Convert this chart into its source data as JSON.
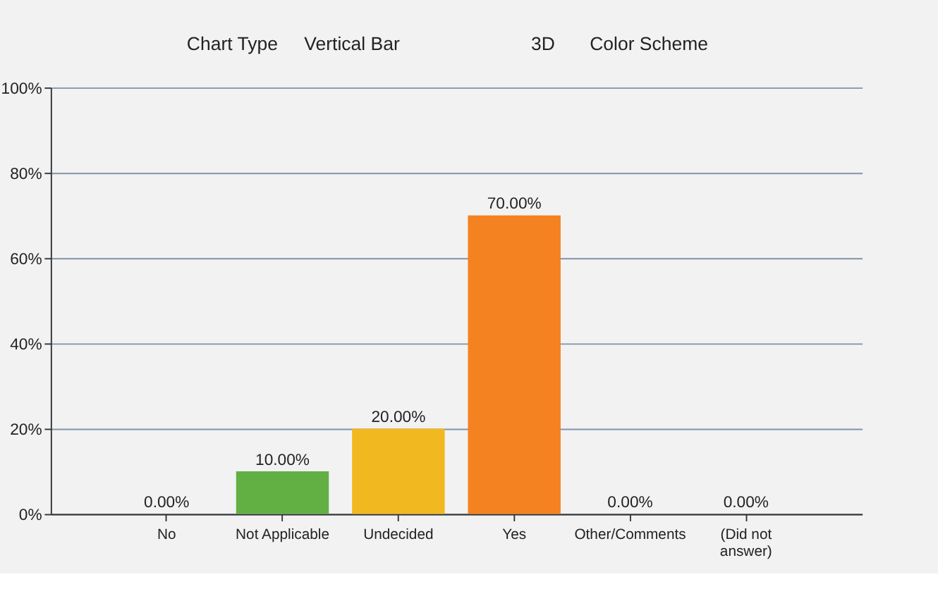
{
  "chart_data": {
    "type": "bar",
    "categories": [
      "No",
      "Not Applicable",
      "Undecided",
      "Yes",
      "Other/Comments",
      "(Did not answer)"
    ],
    "values": [
      0,
      10,
      20,
      70,
      0,
      0
    ],
    "colors": [
      "#4f81bd",
      "#62b044",
      "#f2b81f",
      "#f58220",
      "#8064a2",
      "#4bacc6"
    ],
    "value_labels": [
      "0.00%",
      "10.00%",
      "20.00%",
      "70.00%",
      "0.00%",
      "0.00%"
    ],
    "ylim": [
      0,
      100
    ],
    "yticks": [
      {
        "value": 0,
        "label": "0%"
      },
      {
        "value": 20,
        "label": "20%"
      },
      {
        "value": 40,
        "label": "40%"
      },
      {
        "value": 60,
        "label": "60%"
      },
      {
        "value": 80,
        "label": "80%"
      },
      {
        "value": 100,
        "label": "100%"
      }
    ],
    "grid": "y",
    "annotations": [
      "Chart Type",
      "Vertical Bar",
      "3D",
      "Color Scheme"
    ]
  }
}
